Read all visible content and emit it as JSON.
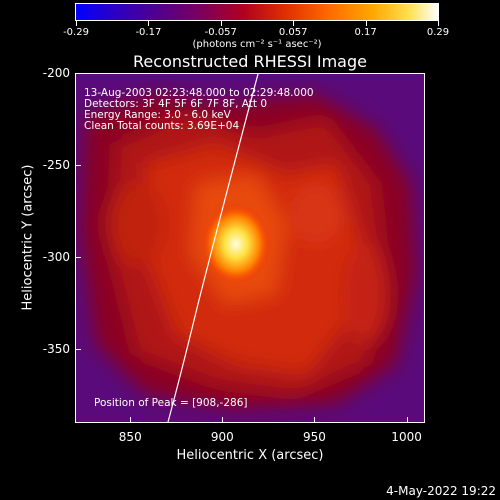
{
  "colorbar": {
    "ticks": [
      "-0.29",
      "-0.17",
      "-0.057",
      "0.057",
      "0.17",
      "0.29"
    ],
    "units": "(photons cm⁻² s⁻¹ asec⁻²)"
  },
  "plot": {
    "title": "Reconstructed RHESSI Image",
    "xlabel": "Heliocentric X (arcsec)",
    "ylabel": "Heliocentric Y (arcsec)",
    "xticks": [
      "850",
      "900",
      "950",
      "1000"
    ],
    "yticks": [
      "-200",
      "-250",
      "-300",
      "-350"
    ],
    "info": {
      "time": "13-Aug-2003 02:23:48.000 to 02:29:48.000",
      "detectors": "Detectors: 3F 4F 5F 6F 7F 8F, Att 0",
      "energy": "Energy Range: 3.0 - 6.0 keV",
      "clean": "Clean    Total counts: 3.69E+04"
    },
    "peak": "Position of Peak = [908,-286]"
  },
  "datestamp": "4-May-2022 19:22",
  "chart_data": {
    "type": "heatmap",
    "title": "Reconstructed RHESSI Image",
    "xlabel": "Heliocentric X (arcsec)",
    "ylabel": "Heliocentric Y (arcsec)",
    "xlim": [
      820,
      1010
    ],
    "ylim": [
      -390,
      -200
    ],
    "colorbar_range": [
      -0.29,
      0.29
    ],
    "peak": [
      908,
      -286
    ]
  }
}
